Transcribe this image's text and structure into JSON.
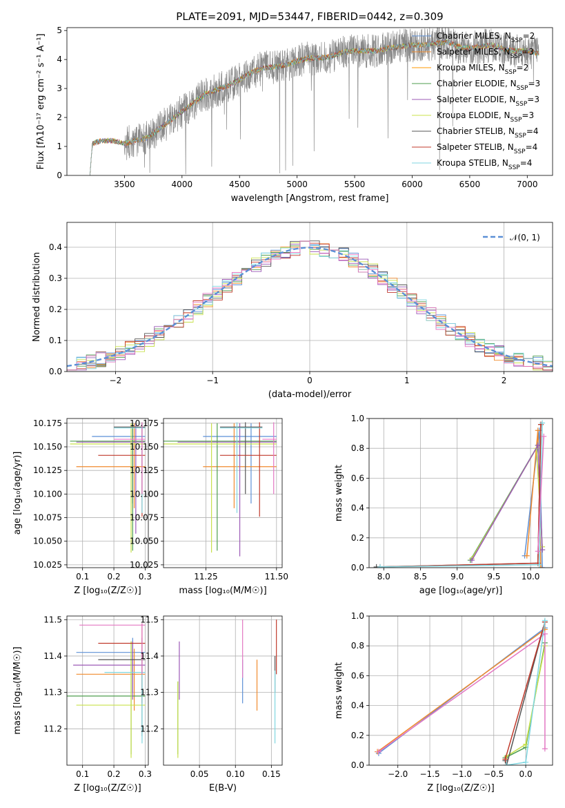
{
  "title": "PLATE=2091, MJD=53447, FIBERID=0442, z=0.309",
  "colors": {
    "chabrier_miles": "#5b8fd6",
    "salpeter_miles": "#f08a2c",
    "kroupa_miles": "#ff9a00",
    "chabrier_elodie": "#4d9e4d",
    "salpeter_elodie": "#9b59b6",
    "kroupa_elodie": "#c8e04a",
    "chabrier_stelib": "#555555",
    "salpeter_stelib": "#c0392b",
    "kroupa_stelib": "#7fd6e0",
    "pink": "#e377c2",
    "olive": "#bcbd22",
    "gray": "#7f7f7f",
    "normal_curve": "#5b8fd6"
  },
  "chart_data": [
    {
      "id": "spectrum",
      "type": "line",
      "title": "PLATE=2091, MJD=53447, FIBERID=0442, z=0.309",
      "xlabel": "wavelength [Angstrom, rest frame]",
      "ylabel": "Flux [fλ10⁻¹⁷ erg cm⁻² s⁻¹ A⁻¹]",
      "xlim": [
        3000,
        7220
      ],
      "ylim": [
        0,
        5.1
      ],
      "xticks": [
        3500,
        4000,
        4500,
        5000,
        5500,
        6000,
        6500,
        7000
      ],
      "yticks": [
        0,
        1,
        2,
        3,
        4,
        5
      ],
      "grid": false,
      "legend_position": "right",
      "legend": [
        {
          "label": "Chabrier MILES, N",
          "sub": "SSP",
          "suffix": "=2",
          "color": "#5b8fd6"
        },
        {
          "label": "Salpeter MILES, N",
          "sub": "SSP",
          "suffix": "=3",
          "color": "#f08a2c"
        },
        {
          "label": "Kroupa MILES, N",
          "sub": "SSP",
          "suffix": "=2",
          "color": "#ff9a00"
        },
        {
          "label": "Chabrier ELODIE, N",
          "sub": "SSP",
          "suffix": "=3",
          "color": "#4d9e4d"
        },
        {
          "label": "Salpeter ELODIE, N",
          "sub": "SSP",
          "suffix": "=3",
          "color": "#9b59b6"
        },
        {
          "label": "Kroupa ELODIE, N",
          "sub": "SSP",
          "suffix": "=3",
          "color": "#c8e04a"
        },
        {
          "label": "Chabrier STELIB, N",
          "sub": "SSP",
          "suffix": "=4",
          "color": "#555555"
        },
        {
          "label": "Salpeter STELIB, N",
          "sub": "SSP",
          "suffix": "=4",
          "color": "#c0392b"
        },
        {
          "label": "Kroupa STELIB, N",
          "sub": "SSP",
          "suffix": "=4",
          "color": "#7fd6e0"
        }
      ],
      "model_trend": {
        "x": [
          3200,
          3220,
          3300,
          3400,
          3500,
          3600,
          3700,
          3800,
          3900,
          4000,
          4100,
          4200,
          4300,
          4400,
          4500,
          4600,
          4700,
          4800,
          4900,
          5000,
          5100,
          5200,
          5300,
          5400,
          5500,
          5600,
          5700,
          5800,
          5900,
          6000,
          6100,
          6200,
          6300,
          6400,
          6500,
          6600,
          6700,
          6800,
          6900,
          7000,
          7100
        ],
        "y": [
          0,
          1.1,
          1.2,
          1.2,
          1.1,
          1.2,
          1.3,
          1.6,
          1.9,
          2.2,
          2.5,
          2.8,
          2.95,
          3.1,
          3.3,
          3.55,
          3.7,
          3.75,
          3.8,
          3.95,
          4.05,
          4.05,
          4.1,
          4.25,
          4.3,
          4.3,
          4.3,
          4.4,
          4.45,
          4.5,
          4.5,
          4.55,
          4.6,
          4.45,
          4.4,
          4.45,
          4.5,
          4.35,
          4.3,
          4.3,
          4.2
        ]
      },
      "data_noise": {
        "start": 3500,
        "amplitude": 0.6
      }
    },
    {
      "id": "residuals",
      "type": "line",
      "xlabel": "(data-model)/error",
      "ylabel": "Normed distribution",
      "xlim": [
        -2.5,
        2.5
      ],
      "ylim": [
        0,
        0.48
      ],
      "xticks": [
        -2,
        -1,
        0,
        1,
        2
      ],
      "yticks": [
        0.0,
        0.1,
        0.2,
        0.3,
        0.4
      ],
      "grid": true,
      "legend_position": "top-right",
      "legend": [
        {
          "label": "𝒩(0, 1)",
          "color": "#5b8fd6",
          "style": "dashed"
        }
      ],
      "bin_width": 0.1,
      "series_colors": [
        "#5b8fd6",
        "#f08a2c",
        "#4d9e4d",
        "#9b59b6",
        "#c8e04a",
        "#555555",
        "#c0392b",
        "#7fd6e0",
        "#e377c2"
      ]
    },
    {
      "id": "age_vs_z",
      "type": "scatter",
      "xlabel": "Z [log₁₀(Z/Z☉)]",
      "ylabel": "age  [log₁₀(age/yr)]",
      "xlim": [
        0.05,
        0.31
      ],
      "ylim": [
        10.022,
        10.18
      ],
      "xticks": [
        0.1,
        0.2,
        0.3
      ],
      "yticks": [
        10.025,
        10.05,
        10.075,
        10.1,
        10.125,
        10.15,
        10.175
      ],
      "grid": true,
      "points": [
        {
          "x": 0.26,
          "y": 10.161,
          "xerr": [
            0.13,
            0.3
          ],
          "yerr": [
            10.09,
            10.175
          ],
          "color": "#5b8fd6"
        },
        {
          "x": 0.265,
          "y": 10.129,
          "xerr": [
            0.08,
            0.3
          ],
          "yerr": [
            10.085,
            10.175
          ],
          "color": "#f08a2c"
        },
        {
          "x": 0.26,
          "y": 10.156,
          "xerr": [
            0.06,
            0.3
          ],
          "yerr": [
            10.04,
            10.175
          ],
          "color": "#4d9e4d"
        },
        {
          "x": 0.27,
          "y": 10.155,
          "xerr": [
            0.08,
            0.3
          ],
          "yerr": [
            10.058,
            10.175
          ],
          "color": "#9b59b6"
        },
        {
          "x": 0.255,
          "y": 10.153,
          "xerr": [
            0.06,
            0.3
          ],
          "yerr": [
            10.038,
            10.175
          ],
          "color": "#c8e04a"
        },
        {
          "x": 0.29,
          "y": 10.171,
          "xerr": [
            0.2,
            0.3
          ],
          "yerr": [
            10.1,
            10.176
          ],
          "color": "#555555"
        },
        {
          "x": 0.29,
          "y": 10.141,
          "xerr": [
            0.15,
            0.3
          ],
          "yerr": [
            10.076,
            10.176
          ],
          "color": "#c0392b"
        },
        {
          "x": 0.29,
          "y": 10.17,
          "xerr": [
            0.2,
            0.3
          ],
          "yerr": [
            10.08,
            10.176
          ],
          "color": "#7fd6e0"
        },
        {
          "x": 0.29,
          "y": 10.158,
          "xerr": [
            0.2,
            0.3
          ],
          "yerr": [
            10.1,
            10.176
          ],
          "color": "#e377c2"
        }
      ]
    },
    {
      "id": "age_vs_mass",
      "type": "scatter",
      "xlabel": "mass [log₁₀(M/M☉)]",
      "ylabel": "",
      "xlim": [
        11.1,
        11.52
      ],
      "ylim": [
        10.022,
        10.18
      ],
      "xticks": [
        11.25,
        11.5
      ],
      "yticks": [
        10.025,
        10.05,
        10.075,
        10.1,
        10.125,
        10.15,
        10.175
      ],
      "grid": true,
      "points": [
        {
          "x": 11.41,
          "y": 10.161,
          "xerr": [
            11.24,
            11.5
          ],
          "yerr": [
            10.09,
            10.175
          ],
          "color": "#5b8fd6"
        },
        {
          "x": 11.35,
          "y": 10.129,
          "xerr": [
            11.24,
            11.5
          ],
          "yerr": [
            10.085,
            10.175
          ],
          "color": "#f08a2c"
        },
        {
          "x": 11.29,
          "y": 10.156,
          "xerr": [
            11.1,
            11.5
          ],
          "yerr": [
            10.04,
            10.175
          ],
          "color": "#4d9e4d"
        },
        {
          "x": 11.37,
          "y": 10.155,
          "xerr": [
            11.15,
            11.5
          ],
          "yerr": [
            10.034,
            10.175
          ],
          "color": "#9b59b6"
        },
        {
          "x": 11.27,
          "y": 10.153,
          "xerr": [
            11.1,
            11.5
          ],
          "yerr": [
            10.038,
            10.175
          ],
          "color": "#c8e04a"
        },
        {
          "x": 11.39,
          "y": 10.171,
          "xerr": [
            11.3,
            11.45
          ],
          "yerr": [
            10.1,
            10.176
          ],
          "color": "#555555"
        },
        {
          "x": 11.44,
          "y": 10.141,
          "xerr": [
            11.3,
            11.5
          ],
          "yerr": [
            10.076,
            10.176
          ],
          "color": "#c0392b"
        },
        {
          "x": 11.36,
          "y": 10.17,
          "xerr": [
            11.3,
            11.45
          ],
          "yerr": [
            10.08,
            10.176
          ],
          "color": "#7fd6e0"
        },
        {
          "x": 11.49,
          "y": 10.158,
          "xerr": [
            11.45,
            11.5
          ],
          "yerr": [
            10.1,
            10.176
          ],
          "color": "#e377c2"
        }
      ]
    },
    {
      "id": "massweight_vs_age",
      "type": "line",
      "xlabel": "age  [log₁₀(age/yr)]",
      "ylabel": "mass weight",
      "xlim": [
        7.8,
        10.3
      ],
      "ylim": [
        0,
        1.0
      ],
      "xticks": [
        8.0,
        8.5,
        9.0,
        9.5,
        10.0
      ],
      "yticks": [
        0.0,
        0.2,
        0.4,
        0.6,
        0.8,
        1.0
      ],
      "grid": true,
      "series": [
        {
          "color": "#5b8fd6",
          "x": [
            9.92,
            10.12,
            10.16
          ],
          "y": [
            0.08,
            0.92,
            0.0
          ]
        },
        {
          "color": "#f08a2c",
          "x": [
            9.95,
            10.1,
            10.14
          ],
          "y": [
            0.08,
            0.92,
            0.0
          ]
        },
        {
          "color": "#4d9e4d",
          "x": [
            9.18,
            10.1,
            10.16
          ],
          "y": [
            0.05,
            0.82,
            0.12
          ]
        },
        {
          "color": "#c8e04a",
          "x": [
            9.2,
            10.08,
            10.16
          ],
          "y": [
            0.06,
            0.8,
            0.14
          ]
        },
        {
          "color": "#9b59b6",
          "x": [
            9.2,
            10.1,
            10.16
          ],
          "y": [
            0.05,
            0.82,
            0.12
          ]
        },
        {
          "color": "#555555",
          "x": [
            7.9,
            10.1,
            10.14
          ],
          "y": [
            0.005,
            0.03,
            0.96
          ]
        },
        {
          "color": "#c0392b",
          "x": [
            7.95,
            10.1,
            10.14
          ],
          "y": [
            0.005,
            0.03,
            0.96
          ]
        },
        {
          "color": "#7fd6e0",
          "x": [
            7.95,
            10.12,
            10.16
          ],
          "y": [
            0.005,
            0.02,
            0.97
          ]
        },
        {
          "color": "#e377c2",
          "x": [
            10.1,
            10.18
          ],
          "y": [
            0.11,
            0.88
          ]
        }
      ]
    },
    {
      "id": "mass_vs_z",
      "type": "scatter",
      "xlabel": "Z [log₁₀(Z/Z☉)]",
      "ylabel": "mass [log₁₀(M/M☉)]",
      "xlim": [
        0.05,
        0.31
      ],
      "ylim": [
        11.1,
        11.51
      ],
      "xticks": [
        0.1,
        0.2,
        0.3
      ],
      "yticks": [
        11.2,
        11.3,
        11.4,
        11.5
      ],
      "grid": true,
      "points": [
        {
          "x": 0.26,
          "y": 11.41,
          "xerr": [
            0.08,
            0.3
          ],
          "yerr": [
            11.3,
            11.45
          ],
          "color": "#5b8fd6"
        },
        {
          "x": 0.265,
          "y": 11.35,
          "xerr": [
            0.08,
            0.3
          ],
          "yerr": [
            11.25,
            11.42
          ],
          "color": "#f08a2c"
        },
        {
          "x": 0.255,
          "y": 11.29,
          "xerr": [
            0.05,
            0.3
          ],
          "yerr": [
            11.13,
            11.44
          ],
          "color": "#4d9e4d"
        },
        {
          "x": 0.26,
          "y": 11.375,
          "xerr": [
            0.07,
            0.3
          ],
          "yerr": [
            11.28,
            11.44
          ],
          "color": "#9b59b6"
        },
        {
          "x": 0.255,
          "y": 11.265,
          "xerr": [
            0.08,
            0.3
          ],
          "yerr": [
            11.12,
            11.44
          ],
          "color": "#c8e04a"
        },
        {
          "x": 0.29,
          "y": 11.39,
          "xerr": [
            0.15,
            0.3
          ],
          "yerr": [
            11.18,
            11.45
          ],
          "color": "#555555"
        },
        {
          "x": 0.29,
          "y": 11.435,
          "xerr": [
            0.15,
            0.3
          ],
          "yerr": [
            11.27,
            11.49
          ],
          "color": "#c0392b"
        },
        {
          "x": 0.29,
          "y": 11.355,
          "xerr": [
            0.17,
            0.3
          ],
          "yerr": [
            11.16,
            11.4
          ],
          "color": "#7fd6e0"
        },
        {
          "x": 0.29,
          "y": 11.485,
          "xerr": [
            0.09,
            0.3
          ],
          "yerr": [
            11.35,
            11.49
          ],
          "color": "#e377c2"
        }
      ]
    },
    {
      "id": "mass_vs_ebv",
      "type": "scatter",
      "xlabel": "E(B-V)",
      "ylabel": "",
      "xlim": [
        0.0,
        0.165
      ],
      "ylim": [
        11.1,
        11.51
      ],
      "xticks": [
        0.05,
        0.1,
        0.15
      ],
      "yticks": [
        11.2,
        11.3,
        11.4,
        11.5
      ],
      "grid": true,
      "points": [
        {
          "x": 0.11,
          "y": 11.32,
          "yerr": [
            11.27,
            11.39
          ],
          "color": "#5b8fd6"
        },
        {
          "x": 0.13,
          "y": 11.32,
          "yerr": [
            11.25,
            11.39
          ],
          "color": "#f08a2c"
        },
        {
          "x": 0.02,
          "y": 11.25,
          "yerr": [
            11.13,
            11.33
          ],
          "color": "#4d9e4d"
        },
        {
          "x": 0.022,
          "y": 11.35,
          "yerr": [
            11.28,
            11.44
          ],
          "color": "#9b59b6"
        },
        {
          "x": 0.02,
          "y": 11.22,
          "yerr": [
            11.12,
            11.33
          ],
          "color": "#c8e04a"
        },
        {
          "x": 0.155,
          "y": 11.35,
          "yerr": [
            11.3,
            11.4
          ],
          "color": "#555555"
        },
        {
          "x": 0.157,
          "y": 11.43,
          "yerr": [
            11.35,
            11.5
          ],
          "color": "#c0392b"
        },
        {
          "x": 0.155,
          "y": 11.3,
          "yerr": [
            11.16,
            11.36
          ],
          "color": "#7fd6e0"
        },
        {
          "x": 0.11,
          "y": 11.42,
          "yerr": [
            11.34,
            11.5
          ],
          "color": "#e377c2"
        }
      ]
    },
    {
      "id": "massweight_vs_z",
      "type": "line",
      "xlabel": "Z [log₁₀(Z/Z☉)]",
      "ylabel": "mass weight",
      "xlim": [
        -2.45,
        0.42
      ],
      "ylim": [
        0,
        1.0
      ],
      "xticks": [
        -2.0,
        -1.5,
        -1.0,
        -0.5,
        0.0
      ],
      "yticks": [
        0.0,
        0.2,
        0.4,
        0.6,
        0.8,
        1.0
      ],
      "grid": true,
      "series": [
        {
          "color": "#5b8fd6",
          "x": [
            -2.3,
            0.3
          ],
          "y": [
            0.08,
            0.92
          ]
        },
        {
          "color": "#f08a2c",
          "x": [
            -2.32,
            0.3
          ],
          "y": [
            0.09,
            0.91
          ]
        },
        {
          "color": "#e377c2",
          "x": [
            -2.3,
            0.3
          ],
          "y": [
            0.09,
            0.88
          ]
        },
        {
          "color": "#4d9e4d",
          "x": [
            -0.32,
            0.0,
            0.3
          ],
          "y": [
            0.05,
            0.12,
            0.82
          ]
        },
        {
          "color": "#c8e04a",
          "x": [
            -0.3,
            0.0,
            0.3
          ],
          "y": [
            0.06,
            0.14,
            0.8
          ]
        },
        {
          "color": "#555555",
          "x": [
            -0.32,
            -0.3,
            0.3
          ],
          "y": [
            0.03,
            0.0,
            0.96
          ]
        },
        {
          "color": "#c0392b",
          "x": [
            -0.32,
            0.3
          ],
          "y": [
            0.04,
            0.96
          ]
        },
        {
          "color": "#7fd6e0",
          "x": [
            -0.3,
            0.0,
            0.3
          ],
          "y": [
            0.0,
            0.02,
            0.97
          ]
        },
        {
          "color": "#e377c2",
          "x": [
            0.3,
            0.3
          ],
          "y": [
            0.11,
            0.88
          ]
        }
      ]
    }
  ]
}
